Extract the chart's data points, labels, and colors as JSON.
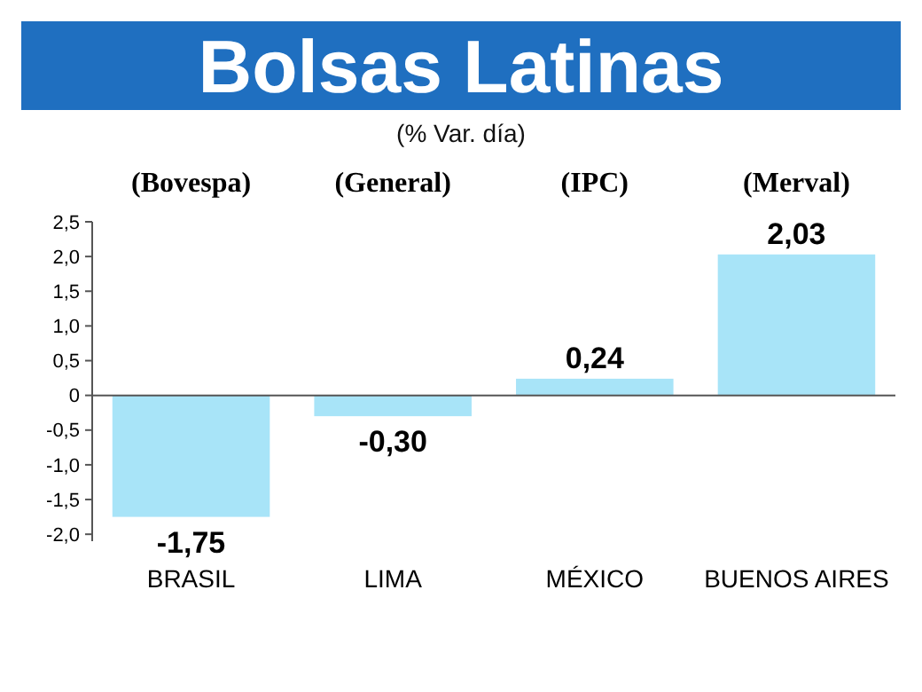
{
  "chart_data": {
    "type": "bar",
    "title": "Bolsas Latinas",
    "subtitle": "(% Var. día)",
    "categories": [
      "BRASIL",
      "LIMA",
      "MÉXICO",
      "BUENOS AIRES"
    ],
    "values": [
      -1.75,
      -0.3,
      0.24,
      2.03
    ],
    "color": "#a8e4f8",
    "value_labels": [
      "-1,75",
      "-0,30",
      "0,24",
      "2,03"
    ],
    "annotations": [
      "(Bovespa)",
      "(General)",
      "(IPC)",
      "(Merval)"
    ],
    "ylim": [
      -2.1,
      2.5
    ],
    "yticks": [
      {
        "value": -2,
        "label": "-2,0"
      },
      {
        "value": -1.5,
        "label": "-1,5"
      },
      {
        "value": -1,
        "label": "-1,0"
      },
      {
        "value": -0.5,
        "label": "-0,5"
      },
      {
        "value": 0,
        "label": "0"
      },
      {
        "value": 0.5,
        "label": "0,5"
      },
      {
        "value": 1,
        "label": "1,0"
      },
      {
        "value": 1.5,
        "label": "1,5"
      },
      {
        "value": 2,
        "label": "2,0"
      },
      {
        "value": 2.5,
        "label": "2,5"
      }
    ]
  }
}
